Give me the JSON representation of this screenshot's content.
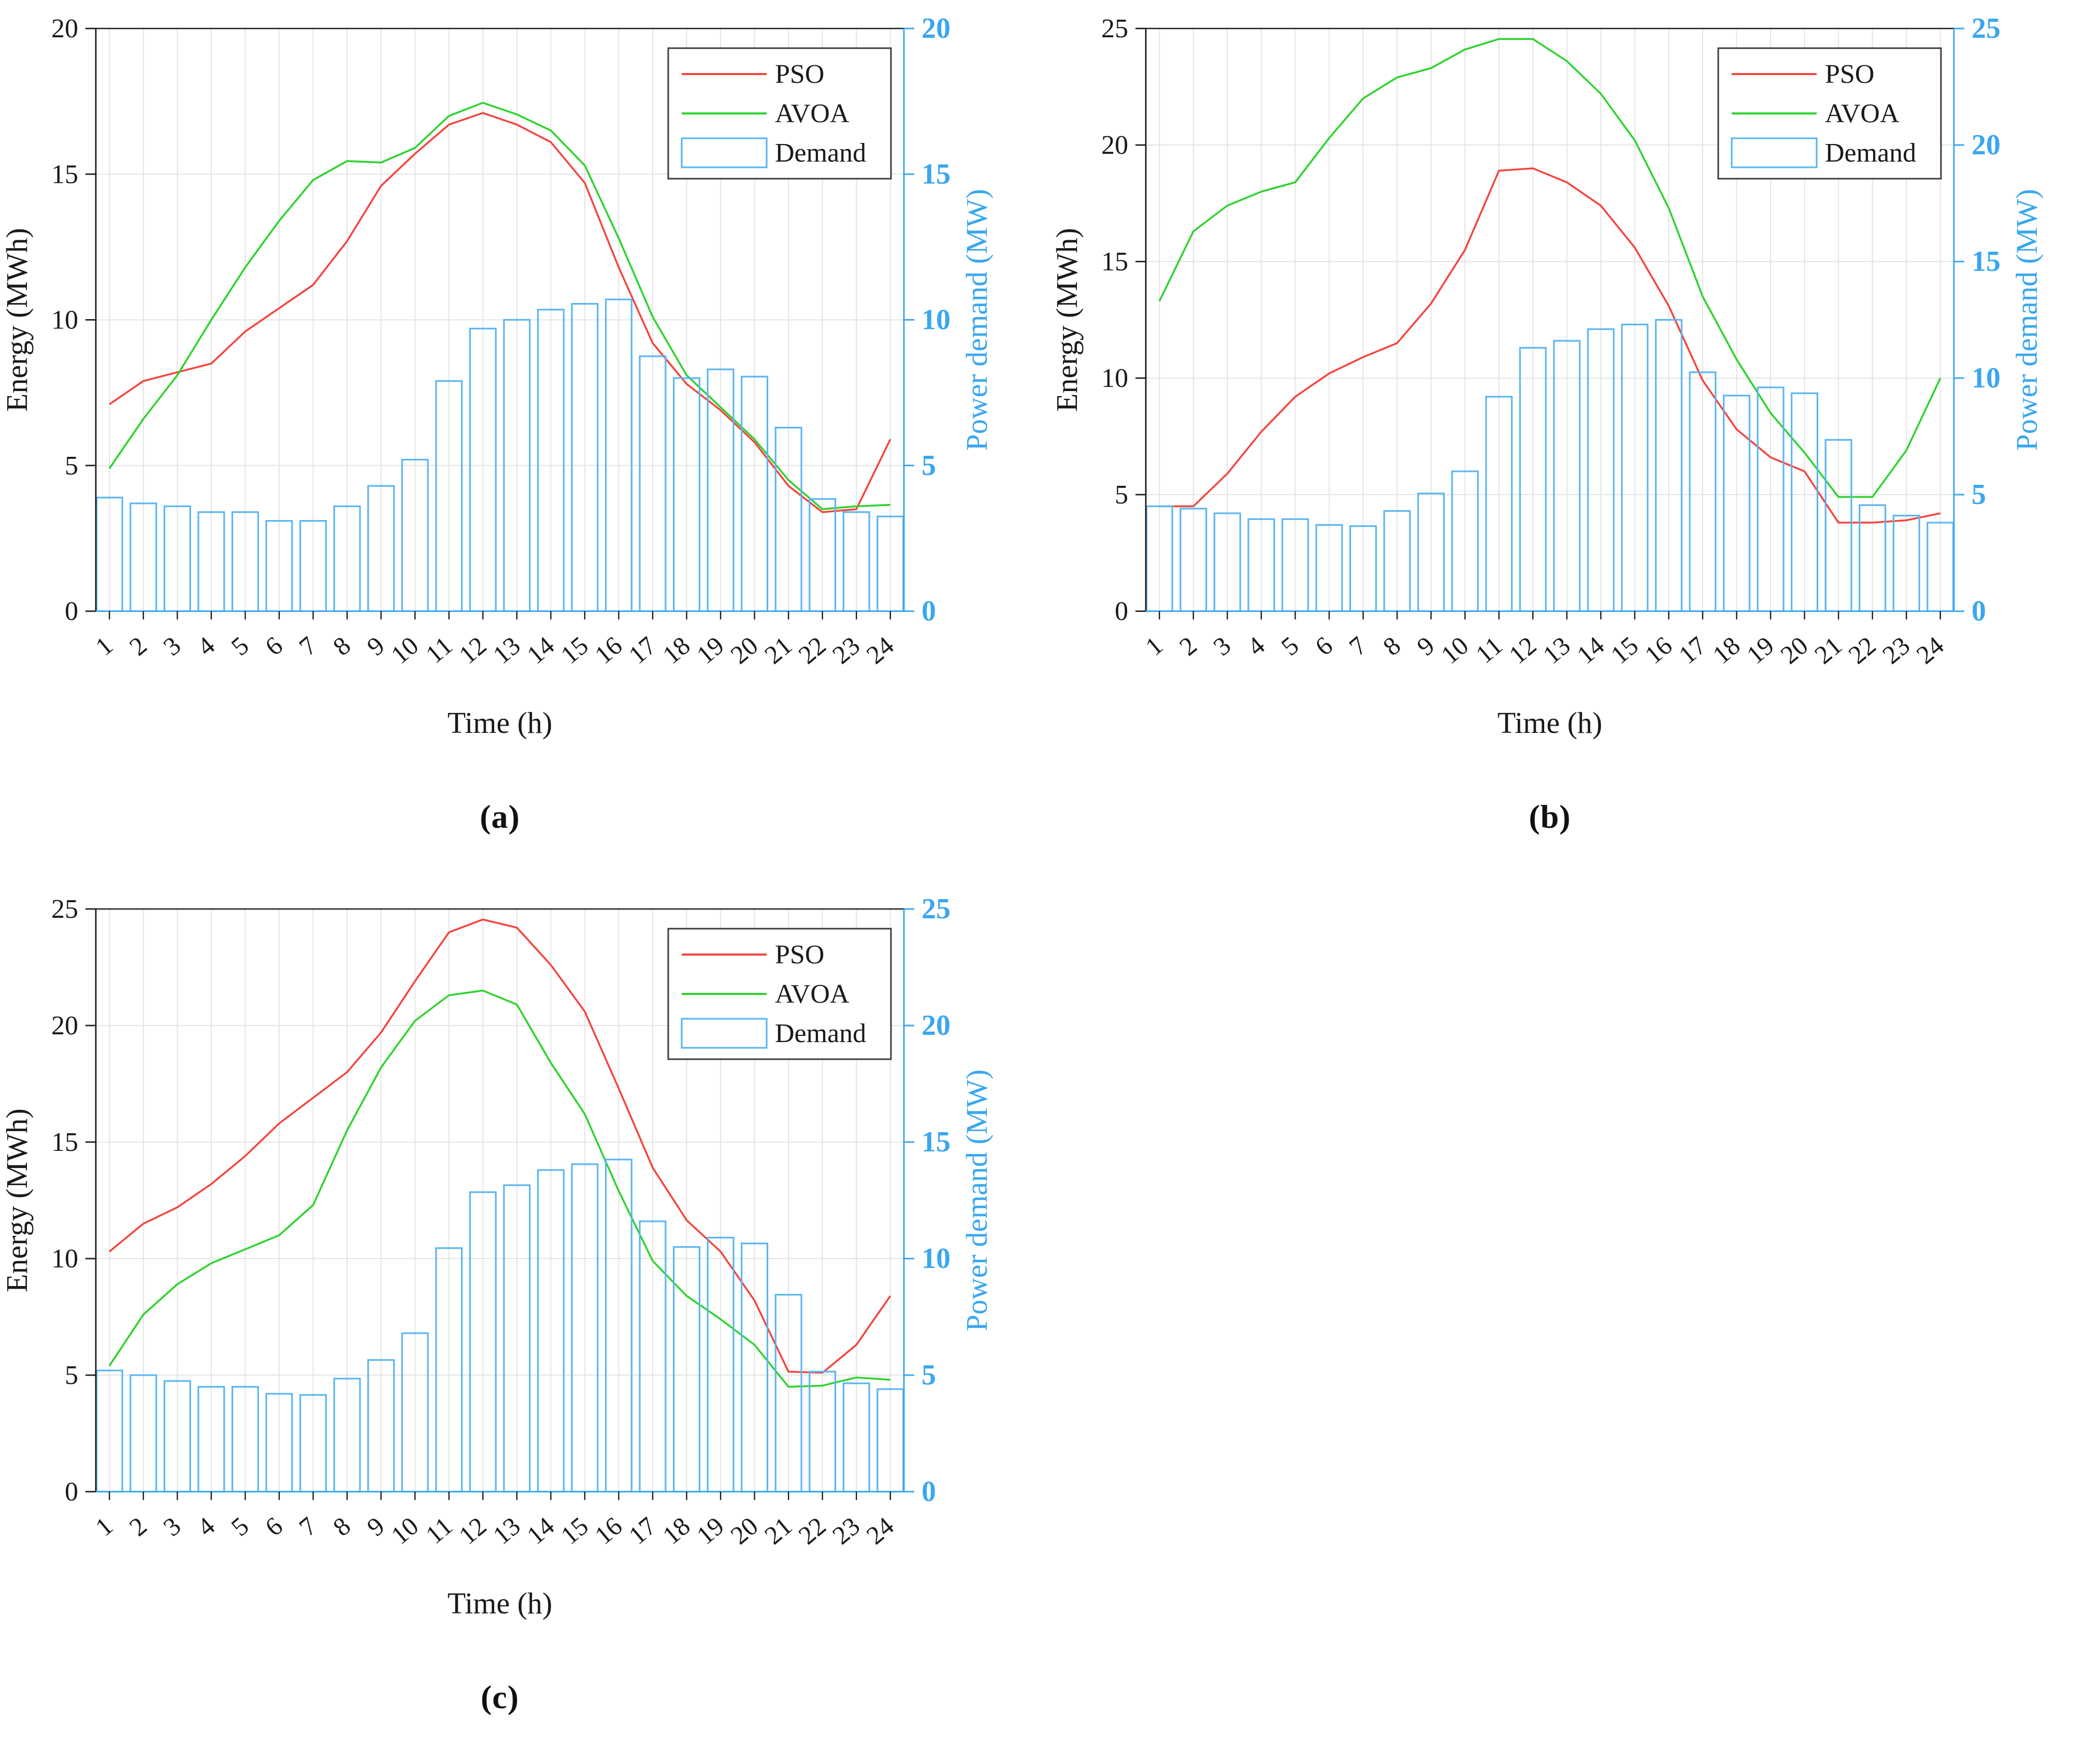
{
  "page_background": "#ffffff",
  "colors": {
    "pso": "#f4453e",
    "avoa": "#2ed32e",
    "demand_bar": "#5bb6f2",
    "axis_right_blue": "#3aa7f0",
    "axis_black": "#1a1a1a",
    "grid": "#e4e4e4",
    "legend_border": "#3c3c3c",
    "legend_background": "#ffffff",
    "tick_text_black": "#1a1a1a"
  },
  "legend": {
    "pso_label": "PSO",
    "avoa_label": "AVOA",
    "demand_label": "Demand"
  },
  "chart_data": [
    {
      "id": "a",
      "type": "bar+line",
      "caption": "(a)",
      "title": "",
      "xlabel": "Time (h)",
      "ylabel_left": "Energy (MWh)",
      "ylabel_right": "Power demand (MW)",
      "ylim_left": [
        0,
        20
      ],
      "ylim_right": [
        0,
        20
      ],
      "yticks": [
        0,
        5,
        10,
        15,
        20
      ],
      "grid": true,
      "legend_position": "top-right",
      "legend_entries": [
        "PSO",
        "AVOA",
        "Demand"
      ],
      "categories": [
        "1",
        "2",
        "3",
        "4",
        "5",
        "6",
        "7",
        "8",
        "9",
        "10",
        "11",
        "12",
        "13",
        "14",
        "15",
        "16",
        "17",
        "18",
        "19",
        "20",
        "21",
        "22",
        "23",
        "24"
      ],
      "series": [
        {
          "name": "PSO",
          "type": "line",
          "axis": "left",
          "color_key": "pso",
          "values": [
            7.1,
            7.9,
            8.2,
            8.5,
            9.6,
            10.4,
            11.2,
            12.7,
            14.6,
            15.7,
            16.7,
            17.1,
            16.7,
            16.1,
            14.7,
            11.8,
            9.2,
            7.8,
            6.9,
            5.8,
            4.3,
            3.4,
            3.5,
            5.9
          ]
        },
        {
          "name": "AVOA",
          "type": "line",
          "axis": "left",
          "color_key": "avoa",
          "values": [
            4.9,
            6.6,
            8.1,
            10.0,
            11.8,
            13.4,
            14.8,
            15.45,
            15.4,
            15.9,
            17.0,
            17.45,
            17.05,
            16.5,
            15.3,
            12.8,
            10.1,
            8.1,
            7.0,
            5.9,
            4.5,
            3.5,
            3.6,
            3.65
          ]
        },
        {
          "name": "Demand",
          "type": "bar",
          "axis": "right",
          "color_key": "demand_bar",
          "values": [
            3.9,
            3.7,
            3.6,
            3.4,
            3.4,
            3.1,
            3.1,
            3.6,
            4.3,
            5.2,
            7.9,
            9.7,
            10.0,
            10.35,
            10.55,
            10.7,
            8.75,
            8.0,
            8.3,
            8.05,
            6.3,
            3.85,
            3.4,
            3.25
          ]
        }
      ]
    },
    {
      "id": "b",
      "type": "bar+line",
      "caption": "(b)",
      "title": "",
      "xlabel": "Time (h)",
      "ylabel_left": "Energy (MWh)",
      "ylabel_right": "Power demand (MW)",
      "ylim_left": [
        0,
        25
      ],
      "ylim_right": [
        0,
        25
      ],
      "yticks": [
        0,
        5,
        10,
        15,
        20,
        25
      ],
      "grid": true,
      "legend_position": "top-right",
      "legend_entries": [
        "PSO",
        "AVOA",
        "Demand"
      ],
      "categories": [
        "1",
        "2",
        "3",
        "4",
        "5",
        "6",
        "7",
        "8",
        "9",
        "10",
        "11",
        "12",
        "13",
        "14",
        "15",
        "16",
        "17",
        "18",
        "19",
        "20",
        "21",
        "22",
        "23",
        "24"
      ],
      "series": [
        {
          "name": "PSO",
          "type": "line",
          "axis": "left",
          "color_key": "pso",
          "values": [
            4.5,
            4.5,
            5.9,
            7.7,
            9.2,
            10.2,
            10.9,
            11.5,
            13.2,
            15.5,
            18.9,
            19.0,
            18.4,
            17.4,
            15.6,
            13.1,
            9.9,
            7.8,
            6.6,
            6.0,
            3.8,
            3.8,
            3.9,
            4.2
          ]
        },
        {
          "name": "AVOA",
          "type": "line",
          "axis": "left",
          "color_key": "avoa",
          "values": [
            13.3,
            16.3,
            17.4,
            18.0,
            18.4,
            20.3,
            22.0,
            22.9,
            23.3,
            24.1,
            24.55,
            24.55,
            23.6,
            22.2,
            20.2,
            17.3,
            13.5,
            10.8,
            8.5,
            6.8,
            4.9,
            4.9,
            6.9,
            10.0
          ]
        },
        {
          "name": "Demand",
          "type": "bar",
          "axis": "right",
          "color_key": "demand_bar",
          "values": [
            4.5,
            4.4,
            4.2,
            3.95,
            3.95,
            3.7,
            3.65,
            4.3,
            5.05,
            6.0,
            9.2,
            11.3,
            11.6,
            12.1,
            12.3,
            12.5,
            10.25,
            9.25,
            9.6,
            9.35,
            7.35,
            4.55,
            4.1,
            3.8
          ]
        }
      ]
    },
    {
      "id": "c",
      "type": "bar+line",
      "caption": "(c)",
      "title": "",
      "xlabel": "Time (h)",
      "ylabel_left": "Energy (MWh)",
      "ylabel_right": "Power demand (MW)",
      "ylim_left": [
        0,
        25
      ],
      "ylim_right": [
        0,
        25
      ],
      "yticks": [
        0,
        5,
        10,
        15,
        20,
        25
      ],
      "grid": true,
      "legend_position": "top-right",
      "legend_entries": [
        "PSO",
        "AVOA",
        "Demand"
      ],
      "categories": [
        "1",
        "2",
        "3",
        "4",
        "5",
        "6",
        "7",
        "8",
        "9",
        "10",
        "11",
        "12",
        "13",
        "14",
        "15",
        "16",
        "17",
        "18",
        "19",
        "20",
        "21",
        "22",
        "23",
        "24"
      ],
      "series": [
        {
          "name": "PSO",
          "type": "line",
          "axis": "left",
          "color_key": "pso",
          "values": [
            10.3,
            11.5,
            12.2,
            13.2,
            14.4,
            15.8,
            16.9,
            18.0,
            19.7,
            21.9,
            24.0,
            24.55,
            24.2,
            22.6,
            20.6,
            17.3,
            13.9,
            11.65,
            10.3,
            8.2,
            5.15,
            5.1,
            6.3,
            8.4
          ]
        },
        {
          "name": "AVOA",
          "type": "line",
          "axis": "left",
          "color_key": "avoa",
          "values": [
            5.4,
            7.6,
            8.9,
            9.8,
            10.4,
            11.0,
            12.3,
            15.5,
            18.2,
            20.2,
            21.3,
            21.5,
            20.9,
            18.4,
            16.2,
            12.9,
            9.9,
            8.4,
            7.4,
            6.3,
            4.5,
            4.55,
            4.9,
            4.8
          ]
        },
        {
          "name": "Demand",
          "type": "bar",
          "axis": "right",
          "color_key": "demand_bar",
          "values": [
            5.2,
            5.0,
            4.75,
            4.5,
            4.5,
            4.2,
            4.15,
            4.85,
            5.65,
            6.8,
            10.45,
            12.85,
            13.15,
            13.8,
            14.05,
            14.25,
            11.6,
            10.5,
            10.9,
            10.65,
            8.45,
            5.15,
            4.65,
            4.4
          ]
        }
      ]
    }
  ]
}
